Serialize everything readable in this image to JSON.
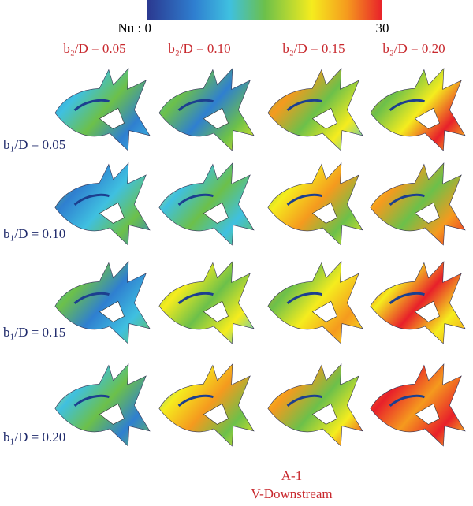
{
  "colorbar": {
    "min_label": "Nu : 0",
    "max_label": "30"
  },
  "columns": [
    "b₂/D = 0.05",
    "b₂/D = 0.10",
    "b₂/D = 0.15",
    "b₂/D = 0.20"
  ],
  "rows": [
    "b₁/D = 0.05",
    "b₁/D = 0.10",
    "b₁/D = 0.15",
    "b₁/D = 0.20"
  ],
  "caption": {
    "line1": "A-1",
    "line2": "V-Downstream"
  }
}
